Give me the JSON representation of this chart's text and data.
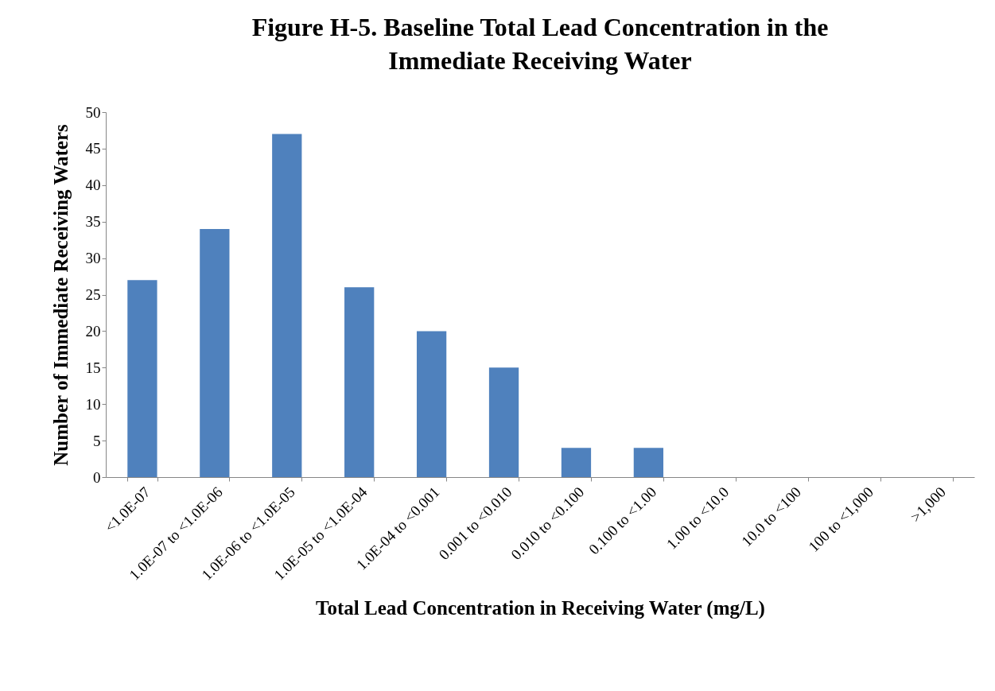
{
  "chart_data": {
    "type": "bar",
    "title": "Figure H-5. Baseline Total Lead Concentration in the Immediate Receiving Water",
    "xlabel": "Total Lead Concentration in Receiving Water (mg/L)",
    "ylabel": "Number of Immediate Receiving Waters",
    "categories": [
      "<1.0E-07",
      "1.0E-07 to <1.0E-06",
      "1.0E-06 to <1.0E-05",
      "1.0E-05 to <1.0E-04",
      "1.0E-04 to <0.001",
      "0.001 to <0.010",
      "0.010 to <0.100",
      "0.100 to <1.00",
      "1.00 to <10.0",
      "10.0 to <100",
      "100 to <1,000",
      ">1,000"
    ],
    "values": [
      27,
      34,
      47,
      26,
      20,
      15,
      4,
      4,
      0,
      0,
      0,
      0
    ],
    "color": "#4f81bd",
    "ylim": [
      0,
      50
    ],
    "yticks": [
      0,
      5,
      10,
      15,
      20,
      25,
      30,
      35,
      40,
      45,
      50
    ],
    "grid": false
  }
}
